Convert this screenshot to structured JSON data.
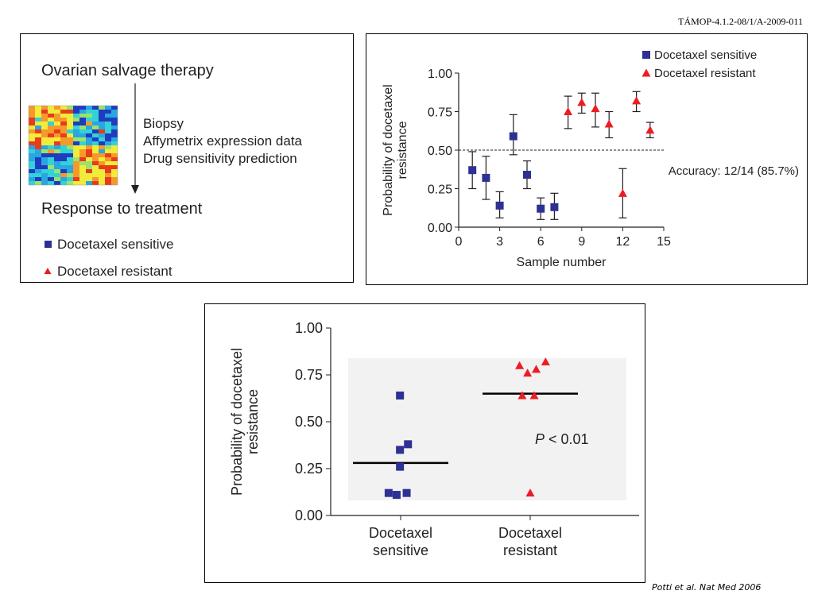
{
  "header": {
    "code": "TÁMOP-4.1.2-08/1/A-2009-011"
  },
  "workflow": {
    "title": "Ovarian salvage therapy",
    "steps": [
      "Biopsy",
      "Affymetrix expression data",
      "Drug sensitivity prediction"
    ],
    "outcome": "Response to treatment",
    "legend": [
      {
        "label": "Docetaxel sensitive",
        "marker": "square",
        "color": "#2e3192"
      },
      {
        "label": "Docetaxel resistant",
        "marker": "triangle",
        "color": "#ed1c24"
      }
    ],
    "heatmap_colors": [
      "#1f3cc0",
      "#2aa6e0",
      "#33d1d8",
      "#9be36a",
      "#f1ec3a",
      "#f59a2a",
      "#e83b1e"
    ]
  },
  "colors": {
    "sensitive": "#2e3192",
    "resistant": "#ed1c24",
    "text": "#231f20"
  },
  "chart_data": [
    {
      "type": "scatter",
      "ylabel_lines": [
        "Probability of docetaxel",
        "resistance"
      ],
      "xlabel": "Sample number",
      "xlim": [
        0,
        15
      ],
      "ylim": [
        0,
        1
      ],
      "xticks": [
        "0",
        "3",
        "6",
        "9",
        "12",
        "15"
      ],
      "yticks": [
        "0.00",
        "0.25",
        "0.50",
        "0.75",
        "1.00"
      ],
      "threshold": 0.5,
      "annotation": "Accuracy: 12/14 (85.7%)",
      "legend": [
        "Docetaxel sensitive",
        "Docetaxel resistant"
      ],
      "legend_position": "top-right",
      "series": [
        {
          "name": "Docetaxel sensitive",
          "marker": "square",
          "points": [
            {
              "x": 1,
              "y": 0.37,
              "lo": 0.25,
              "hi": 0.49
            },
            {
              "x": 2,
              "y": 0.32,
              "lo": 0.18,
              "hi": 0.46
            },
            {
              "x": 3,
              "y": 0.14,
              "lo": 0.06,
              "hi": 0.23
            },
            {
              "x": 4,
              "y": 0.59,
              "lo": 0.47,
              "hi": 0.73
            },
            {
              "x": 5,
              "y": 0.34,
              "lo": 0.25,
              "hi": 0.43
            },
            {
              "x": 6,
              "y": 0.12,
              "lo": 0.05,
              "hi": 0.19
            },
            {
              "x": 7,
              "y": 0.13,
              "lo": 0.05,
              "hi": 0.22
            }
          ]
        },
        {
          "name": "Docetaxel resistant",
          "marker": "triangle",
          "points": [
            {
              "x": 8,
              "y": 0.75,
              "lo": 0.64,
              "hi": 0.85
            },
            {
              "x": 9,
              "y": 0.81,
              "lo": 0.74,
              "hi": 0.87
            },
            {
              "x": 10,
              "y": 0.77,
              "lo": 0.65,
              "hi": 0.87
            },
            {
              "x": 11,
              "y": 0.67,
              "lo": 0.58,
              "hi": 0.75
            },
            {
              "x": 12,
              "y": 0.22,
              "lo": 0.06,
              "hi": 0.38
            },
            {
              "x": 13,
              "y": 0.82,
              "lo": 0.75,
              "hi": 0.88
            },
            {
              "x": 14,
              "y": 0.63,
              "lo": 0.58,
              "hi": 0.68
            }
          ]
        }
      ]
    },
    {
      "type": "scatter",
      "ylabel_lines": [
        "Probability of docetaxel",
        "resistance"
      ],
      "ylim": [
        0,
        1
      ],
      "yticks": [
        "0.00",
        "0.25",
        "0.50",
        "0.75",
        "1.00"
      ],
      "categories": [
        [
          "Docetaxel",
          "sensitive"
        ],
        [
          "Docetaxel",
          "resistant"
        ]
      ],
      "annotation": {
        "italic": "P",
        "text": " < 0.01"
      },
      "series": [
        {
          "name": "Docetaxel sensitive",
          "marker": "square",
          "mean": 0.28,
          "points": [
            {
              "offset": -0.02,
              "y": 0.64
            },
            {
              "offset": 0.22,
              "y": 0.38
            },
            {
              "offset": -0.02,
              "y": 0.35
            },
            {
              "offset": -0.02,
              "y": 0.26
            },
            {
              "offset": -0.36,
              "y": 0.12
            },
            {
              "offset": -0.12,
              "y": 0.11
            },
            {
              "offset": 0.18,
              "y": 0.12
            }
          ]
        },
        {
          "name": "Docetaxel resistant",
          "marker": "triangle",
          "mean": 0.65,
          "points": [
            {
              "offset": -0.32,
              "y": 0.8
            },
            {
              "offset": -0.08,
              "y": 0.76
            },
            {
              "offset": 0.18,
              "y": 0.78
            },
            {
              "offset": 0.46,
              "y": 0.82
            },
            {
              "offset": -0.24,
              "y": 0.64
            },
            {
              "offset": 0.12,
              "y": 0.64
            },
            {
              "offset": 0.0,
              "y": 0.12
            }
          ]
        }
      ]
    }
  ],
  "citation": "Potti et al.  Nat Med 2006"
}
